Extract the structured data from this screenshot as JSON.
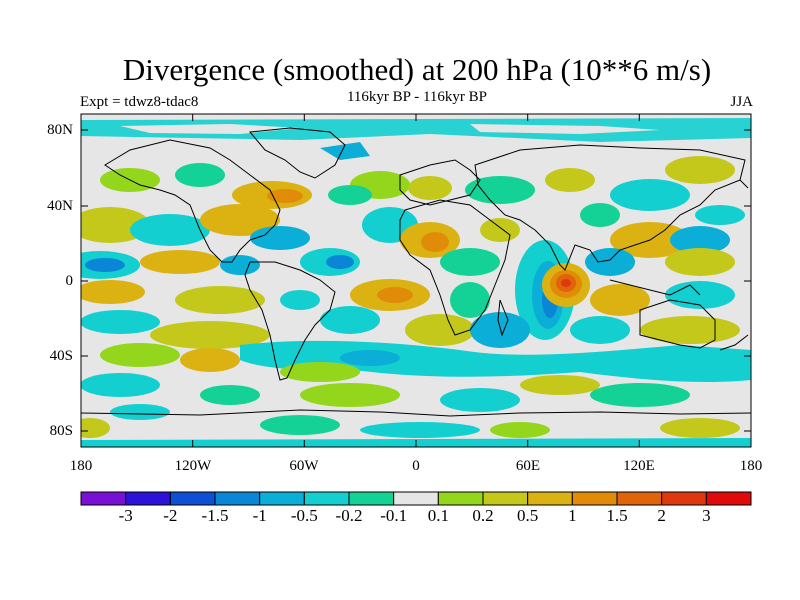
{
  "title": "Divergence (smoothed) at 200 hPa (10**6 m/s)",
  "subtitle": "116kyr BP - 116kyr BP",
  "left_label": "Expt = tdwz8-tdac8",
  "right_label": "JJA",
  "axes": {
    "y_ticks": [
      "80N",
      "40N",
      "0",
      "40S",
      "80S"
    ],
    "x_ticks": [
      "180",
      "120W",
      "60W",
      "0",
      "60E",
      "120E",
      "180"
    ]
  },
  "colorbar": {
    "colors": [
      "#7a0fd6",
      "#2d12d9",
      "#0f4fd6",
      "#0a86d6",
      "#0aaed6",
      "#14cfcf",
      "#14d296",
      "#e6e6e6",
      "#93d61b",
      "#c3c81b",
      "#dcb213",
      "#e08c08",
      "#e0640a",
      "#e0380e",
      "#e00a0a"
    ],
    "labels": [
      "-3",
      "-2",
      "-1.5",
      "-1",
      "-0.5",
      "-0.2",
      "-0.1",
      "0.1",
      "0.2",
      "0.5",
      "1",
      "1.5",
      "2",
      "3"
    ]
  }
}
